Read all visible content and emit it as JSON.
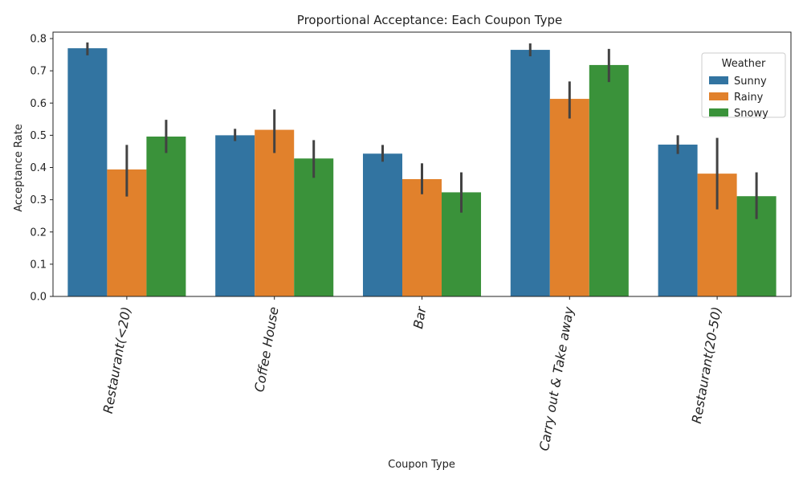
{
  "chart_data": {
    "type": "bar",
    "title": "Proportional Acceptance: Each Coupon Type",
    "xlabel": "Coupon Type",
    "ylabel": "Acceptance Rate",
    "ylim": [
      0,
      0.82
    ],
    "yticks": [
      "0.0",
      "0.1",
      "0.2",
      "0.3",
      "0.4",
      "0.5",
      "0.6",
      "0.7",
      "0.8"
    ],
    "categories": [
      "Restaurant(<20)",
      "Coffee House",
      "Bar",
      "Carry out & Take away",
      "Restaurant(20-50)"
    ],
    "legend": {
      "title": "Weather",
      "placement": "top-right"
    },
    "grid": false,
    "series": [
      {
        "name": "Sunny",
        "color": "#3274a1",
        "values": [
          0.77,
          0.5,
          0.443,
          0.765,
          0.471
        ],
        "error_low": [
          0.748,
          0.482,
          0.418,
          0.745,
          0.442
        ],
        "error_high": [
          0.788,
          0.52,
          0.47,
          0.785,
          0.5
        ]
      },
      {
        "name": "Rainy",
        "color": "#e1812c",
        "values": [
          0.394,
          0.517,
          0.364,
          0.613,
          0.381
        ],
        "error_low": [
          0.31,
          0.445,
          0.317,
          0.552,
          0.27
        ],
        "error_high": [
          0.47,
          0.58,
          0.413,
          0.667,
          0.492
        ]
      },
      {
        "name": "Snowy",
        "color": "#3a923a",
        "values": [
          0.496,
          0.428,
          0.323,
          0.718,
          0.311
        ],
        "error_low": [
          0.445,
          0.368,
          0.26,
          0.665,
          0.24
        ],
        "error_high": [
          0.548,
          0.485,
          0.385,
          0.768,
          0.385
        ]
      }
    ]
  }
}
